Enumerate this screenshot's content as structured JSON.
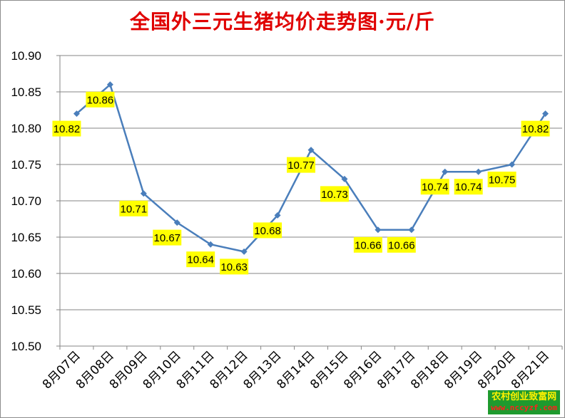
{
  "chart_data": {
    "type": "line",
    "title": "全国外三元生猪均价走势图·元/斤",
    "xlabel": "",
    "ylabel": "",
    "ylim": [
      10.5,
      10.9
    ],
    "ytick_step": 0.05,
    "grid": true,
    "legend": "none",
    "categories": [
      "8月07日",
      "8月08日",
      "8月09日",
      "8月10日",
      "8月11日",
      "8月12日",
      "8月13日",
      "8月14日",
      "8月15日",
      "8月16日",
      "8月17日",
      "8月18日",
      "8月19日",
      "8月20日",
      "8月21日"
    ],
    "series": [
      {
        "values": [
          10.82,
          10.86,
          10.71,
          10.67,
          10.64,
          10.63,
          10.68,
          10.77,
          10.73,
          10.66,
          10.66,
          10.74,
          10.74,
          10.75,
          10.82
        ]
      }
    ],
    "colors": {
      "line": "#4a7ebb",
      "label_bg": "#ffff00",
      "title": "#e00000",
      "grid": "#868686"
    }
  },
  "watermark": {
    "name": "农村创业致富网",
    "url": "www.nccyzf.com"
  }
}
